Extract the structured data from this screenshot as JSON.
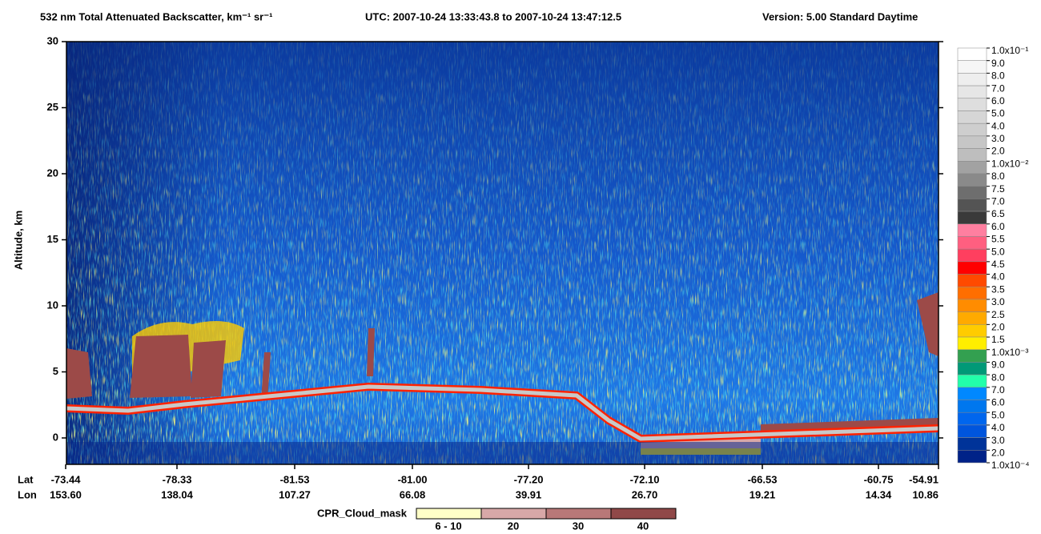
{
  "chart_data": {
    "type": "heatmap",
    "title": "532 nm Total Attenuated Backscatter, km⁻¹ sr⁻¹",
    "time_range": "UTC:  2007-10-24 13:33:43.8  to  2007-10-24 13:47:12.5",
    "version": "Version: 5.00  Standard  Daytime",
    "ylabel": "Altitude, km",
    "ylim": [
      -2,
      30
    ],
    "yticks": [
      0,
      5,
      10,
      15,
      20,
      25,
      30
    ],
    "x_row_labels": [
      "Lat",
      "Lon"
    ],
    "lat": [
      "-73.44",
      "-78.33",
      "-81.53",
      "-81.00",
      "-77.20",
      "-72.10",
      "-66.53",
      "-60.75",
      "-54.91"
    ],
    "lon": [
      "153.60",
      "138.04",
      "107.27",
      "66.08",
      "39.91",
      "26.70",
      "19.21",
      "14.34",
      "10.86"
    ],
    "colorbar": {
      "labels": [
        "1.0x10⁻¹",
        "9.0",
        "8.0",
        "7.0",
        "6.0",
        "5.0",
        "4.0",
        "3.0",
        "2.0",
        "1.0x10⁻²",
        "8.0",
        "7.5",
        "7.0",
        "6.5",
        "6.0",
        "5.5",
        "5.0",
        "4.5",
        "4.0",
        "3.5",
        "3.0",
        "2.5",
        "2.0",
        "1.5",
        "1.0x10⁻³",
        "9.0",
        "8.0",
        "7.0",
        "6.0",
        "5.0",
        "4.0",
        "3.0",
        "2.0",
        "1.0x10⁻⁴"
      ],
      "colors": [
        "#ffffff",
        "#f6f6f6",
        "#eeeeee",
        "#e6e6e6",
        "#dedede",
        "#d6d6d6",
        "#cecece",
        "#c6c6c6",
        "#bebebe",
        "#a2a2a2",
        "#8a8a8a",
        "#6e6e6e",
        "#545454",
        "#3a3a3a",
        "#ff7fa0",
        "#ff5f80",
        "#ff3f5f",
        "#ff0000",
        "#ff4a00",
        "#ff6e00",
        "#ff8c00",
        "#ffaa00",
        "#ffcc00",
        "#ffee00",
        "#33a050",
        "#009977",
        "#22ffaa",
        "#0088ff",
        "#0077ee",
        "#0066ee",
        "#0055dd",
        "#003399",
        "#002288"
      ]
    },
    "cloud_mask": {
      "title": "CPR_Cloud_mask",
      "labels": [
        "6 - 10",
        "20",
        "30",
        "40"
      ],
      "colors": [
        "#ffffc8",
        "#d8a8a8",
        "#b87878",
        "#904848"
      ]
    }
  }
}
